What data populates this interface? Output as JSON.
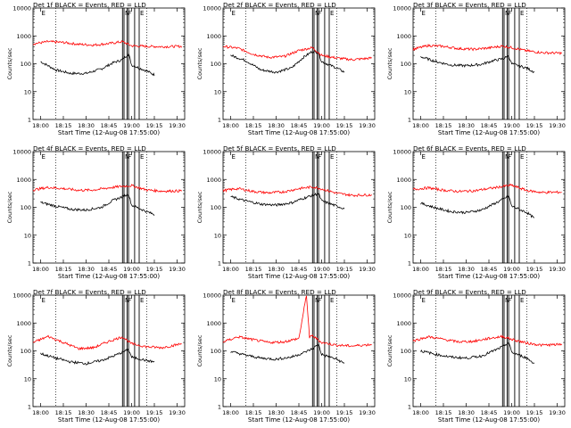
{
  "colors": {
    "events": "#000000",
    "lld": "#ff0000",
    "axis": "#000000",
    "marker": "#000000"
  },
  "shared_axes": {
    "xlabel": "Start Time (12-Aug-08 17:55:00)",
    "ylabel": "Counts/sec",
    "x_ticks": [
      "18:00",
      "18:15",
      "18:30",
      "18:45",
      "19:00",
      "19:15",
      "19:30"
    ],
    "y_ticks": [
      "1",
      "10",
      "100",
      "1000",
      "10000"
    ],
    "y_scale": "log",
    "ylim": [
      1,
      10000
    ],
    "xlim": [
      "17:55",
      "19:35"
    ],
    "dotted_verticals": [
      "18:10",
      "19:10"
    ],
    "solid_verticals": [
      "18:54",
      "18:55",
      "18:57",
      "18:58",
      "19:02",
      "19:05"
    ],
    "markers": [
      {
        "label": "E",
        "time": "18:00"
      },
      {
        "label": "N",
        "time": "18:55"
      },
      {
        "label": "F",
        "time": "18:57"
      },
      {
        "label": "E",
        "time": "19:05"
      }
    ]
  },
  "chart_data": [
    {
      "type": "line",
      "title": "Det 1f BLACK = Events, RED = LLD",
      "series": [
        {
          "name": "Events",
          "x": [
            "18:00",
            "18:10",
            "18:20",
            "18:30",
            "18:40",
            "18:48",
            "18:54",
            "18:58",
            "19:00",
            "19:10",
            "19:15"
          ],
          "values": [
            120,
            60,
            45,
            45,
            65,
            110,
            140,
            230,
            90,
            55,
            40
          ]
        },
        {
          "name": "LLD",
          "x": [
            "17:55",
            "18:05",
            "18:15",
            "18:25",
            "18:35",
            "18:45",
            "18:54",
            "19:00",
            "19:10",
            "19:20",
            "19:33"
          ],
          "values": [
            520,
            620,
            580,
            500,
            470,
            530,
            620,
            440,
            420,
            410,
            420
          ]
        }
      ]
    },
    {
      "type": "line",
      "title": "Det 2f BLACK = Events, RED = LLD",
      "series": [
        {
          "name": "Events",
          "x": [
            "18:00",
            "18:10",
            "18:20",
            "18:30",
            "18:40",
            "18:48",
            "18:54",
            "18:58",
            "19:00",
            "19:10",
            "19:15"
          ],
          "values": [
            200,
            130,
            60,
            50,
            70,
            170,
            280,
            250,
            120,
            70,
            50
          ]
        },
        {
          "name": "LLD",
          "x": [
            "17:55",
            "18:05",
            "18:15",
            "18:25",
            "18:35",
            "18:45",
            "18:54",
            "19:00",
            "19:10",
            "19:20",
            "19:33"
          ],
          "values": [
            420,
            360,
            220,
            170,
            180,
            300,
            380,
            200,
            160,
            140,
            160
          ]
        }
      ]
    },
    {
      "type": "line",
      "title": "Det 3f BLACK = Events, RED = LLD",
      "series": [
        {
          "name": "Events",
          "x": [
            "18:00",
            "18:10",
            "18:20",
            "18:30",
            "18:40",
            "18:48",
            "18:54",
            "18:58",
            "19:00",
            "19:10",
            "19:15"
          ],
          "values": [
            180,
            120,
            90,
            85,
            95,
            130,
            150,
            190,
            100,
            70,
            50
          ]
        },
        {
          "name": "LLD",
          "x": [
            "17:55",
            "18:05",
            "18:15",
            "18:25",
            "18:35",
            "18:45",
            "18:54",
            "19:00",
            "19:10",
            "19:20",
            "19:33"
          ],
          "values": [
            330,
            450,
            420,
            350,
            330,
            370,
            430,
            380,
            290,
            250,
            240
          ]
        }
      ]
    },
    {
      "type": "line",
      "title": "Det 4f BLACK = Events, RED = LLD",
      "series": [
        {
          "name": "Events",
          "x": [
            "18:00",
            "18:10",
            "18:20",
            "18:30",
            "18:40",
            "18:48",
            "18:54",
            "18:58",
            "19:00",
            "19:10",
            "19:15"
          ],
          "values": [
            150,
            110,
            85,
            80,
            100,
            180,
            240,
            300,
            120,
            70,
            55
          ]
        },
        {
          "name": "LLD",
          "x": [
            "17:55",
            "18:05",
            "18:15",
            "18:25",
            "18:35",
            "18:45",
            "18:54",
            "19:00",
            "19:10",
            "19:20",
            "19:33"
          ],
          "values": [
            420,
            520,
            470,
            410,
            420,
            500,
            570,
            600,
            420,
            380,
            390
          ]
        }
      ]
    },
    {
      "type": "line",
      "title": "Det 5f BLACK = Events, RED = LLD",
      "series": [
        {
          "name": "Events",
          "x": [
            "18:00",
            "18:10",
            "18:20",
            "18:30",
            "18:40",
            "18:48",
            "18:54",
            "18:58",
            "19:00",
            "19:10",
            "19:15"
          ],
          "values": [
            240,
            170,
            130,
            120,
            145,
            210,
            270,
            310,
            170,
            110,
            90
          ]
        },
        {
          "name": "LLD",
          "x": [
            "17:55",
            "18:05",
            "18:15",
            "18:25",
            "18:35",
            "18:45",
            "18:54",
            "19:00",
            "19:10",
            "19:20",
            "19:33"
          ],
          "values": [
            400,
            470,
            370,
            330,
            360,
            470,
            540,
            460,
            320,
            270,
            280
          ]
        }
      ]
    },
    {
      "type": "line",
      "title": "Det 6f BLACK = Events, RED = LLD",
      "series": [
        {
          "name": "Events",
          "x": [
            "18:00",
            "18:10",
            "18:20",
            "18:30",
            "18:40",
            "18:48",
            "18:54",
            "18:58",
            "19:00",
            "19:10",
            "19:15"
          ],
          "values": [
            140,
            95,
            70,
            65,
            80,
            130,
            190,
            260,
            110,
            65,
            40
          ]
        },
        {
          "name": "LLD",
          "x": [
            "17:55",
            "18:05",
            "18:15",
            "18:25",
            "18:35",
            "18:45",
            "18:54",
            "19:00",
            "19:10",
            "19:20",
            "19:33"
          ],
          "values": [
            440,
            500,
            410,
            370,
            390,
            470,
            560,
            620,
            400,
            340,
            350
          ]
        }
      ]
    },
    {
      "type": "line",
      "title": "Det 7f BLACK = Events, RED = LLD",
      "series": [
        {
          "name": "Events",
          "x": [
            "18:00",
            "18:10",
            "18:20",
            "18:30",
            "18:40",
            "18:48",
            "18:54",
            "18:58",
            "19:00",
            "19:10",
            "19:15"
          ],
          "values": [
            80,
            55,
            40,
            35,
            45,
            65,
            90,
            110,
            60,
            45,
            40
          ]
        },
        {
          "name": "LLD",
          "x": [
            "17:55",
            "18:05",
            "18:15",
            "18:25",
            "18:35",
            "18:45",
            "18:54",
            "19:00",
            "19:10",
            "19:20",
            "19:33"
          ],
          "values": [
            200,
            330,
            200,
            120,
            130,
            220,
            320,
            180,
            140,
            130,
            180
          ]
        }
      ]
    },
    {
      "type": "line",
      "title": "Det 8f BLACK = Events, RED = LLD",
      "series": [
        {
          "name": "Events",
          "x": [
            "18:00",
            "18:10",
            "18:20",
            "18:30",
            "18:40",
            "18:48",
            "18:54",
            "18:58",
            "19:00",
            "19:10",
            "19:15"
          ],
          "values": [
            95,
            70,
            55,
            50,
            60,
            85,
            120,
            170,
            75,
            50,
            35
          ]
        },
        {
          "name": "LLD",
          "x": [
            "17:55",
            "18:05",
            "18:15",
            "18:25",
            "18:35",
            "18:45",
            "18:50",
            "18:52",
            "18:54",
            "19:00",
            "19:10",
            "19:20",
            "19:33"
          ],
          "values": [
            210,
            320,
            250,
            200,
            210,
            280,
            10000,
            300,
            350,
            200,
            160,
            150,
            170
          ]
        }
      ]
    },
    {
      "type": "line",
      "title": "Det 9f BLACK = Events, RED = LLD",
      "series": [
        {
          "name": "Events",
          "x": [
            "18:00",
            "18:10",
            "18:20",
            "18:30",
            "18:40",
            "18:48",
            "18:54",
            "18:58",
            "19:00",
            "19:10",
            "19:15"
          ],
          "values": [
            100,
            75,
            60,
            55,
            65,
            100,
            140,
            200,
            90,
            55,
            35
          ]
        },
        {
          "name": "LLD",
          "x": [
            "17:55",
            "18:05",
            "18:15",
            "18:25",
            "18:35",
            "18:45",
            "18:54",
            "19:00",
            "19:10",
            "19:20",
            "19:33"
          ],
          "values": [
            230,
            320,
            260,
            210,
            220,
            280,
            330,
            260,
            190,
            160,
            170
          ]
        }
      ]
    }
  ]
}
